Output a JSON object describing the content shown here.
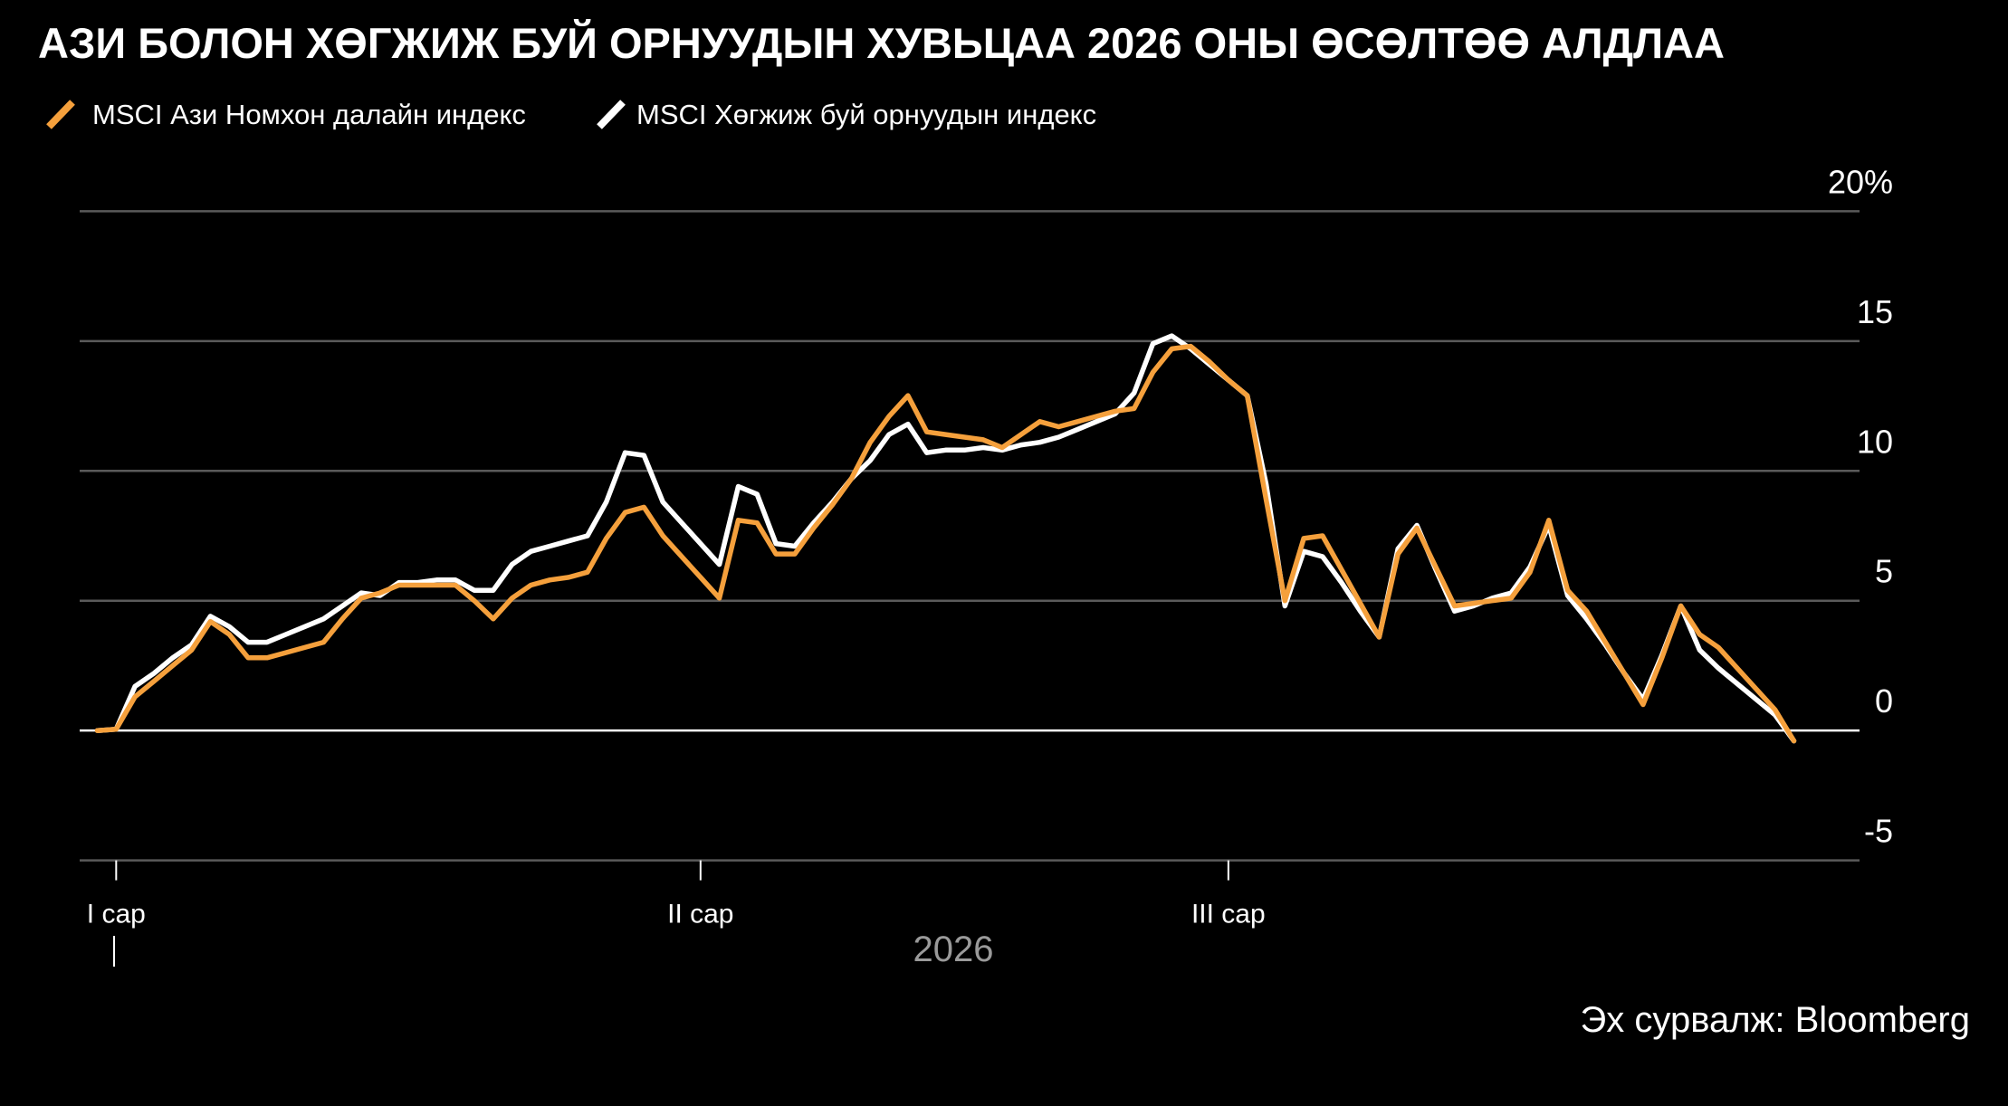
{
  "chart_data": {
    "type": "line",
    "title": "АЗИ БОЛОН ХӨГЖИЖ БУЙ ОРНУУДЫН ХУВЬЦАА 2026 ОНЫ ӨСӨЛТӨӨ АЛДЛАА",
    "xlabel": "2026",
    "source": "Эх сурвалж: Bloomberg",
    "categories": [
      null,
      "I сар",
      null,
      null,
      null,
      null,
      null,
      null,
      null,
      null,
      null,
      null,
      null,
      null,
      null,
      null,
      null,
      null,
      null,
      null,
      null,
      null,
      null,
      null,
      null,
      null,
      null,
      null,
      null,
      null,
      null,
      null,
      "II сар",
      null,
      null,
      null,
      null,
      null,
      null,
      null,
      null,
      null,
      null,
      null,
      null,
      null,
      null,
      null,
      null,
      null,
      null,
      null,
      null,
      null,
      null,
      null,
      null,
      null,
      null,
      null,
      "III сар",
      null,
      null,
      null,
      null,
      null,
      null,
      null,
      null,
      null,
      null,
      null,
      null,
      null,
      null,
      null,
      null,
      null,
      null,
      null,
      null,
      null,
      null,
      null,
      null,
      null,
      null,
      null,
      null,
      null,
      null
    ],
    "series": [
      {
        "name": "MSCI Ази Номхон далайн индекс",
        "color": "#f5a03c",
        "values": [
          0,
          0.05,
          1.3,
          1.9,
          2.5,
          3.1,
          4.2,
          3.7,
          2.8,
          2.8,
          3.0,
          3.2,
          3.4,
          4.3,
          5.1,
          5.3,
          5.6,
          5.6,
          5.6,
          5.6,
          5.0,
          4.3,
          5.1,
          5.6,
          5.8,
          5.9,
          6.1,
          7.4,
          8.4,
          8.6,
          7.5,
          6.7,
          5.9,
          5.1,
          8.1,
          8.0,
          6.8,
          6.8,
          7.8,
          8.7,
          9.7,
          11.1,
          12.1,
          12.9,
          11.5,
          11.4,
          11.3,
          11.2,
          10.9,
          11.4,
          11.9,
          11.7,
          11.9,
          12.1,
          12.3,
          12.4,
          13.8,
          14.7,
          14.8,
          14.2,
          13.5,
          12.9,
          8.9,
          5.0,
          7.4,
          7.5,
          6.2,
          4.9,
          3.6,
          6.8,
          7.8,
          6.3,
          4.8,
          4.9,
          5.0,
          5.1,
          6.1,
          8.1,
          5.4,
          4.6,
          3.4,
          2.2,
          1.0,
          2.8,
          4.8,
          3.7,
          3.2,
          2.4,
          1.6,
          0.8,
          -0.4
        ]
      },
      {
        "name": "MSCI Хөгжиж буй орнуудын индекс",
        "color": "#ffffff",
        "values": [
          0,
          0.05,
          1.7,
          2.2,
          2.8,
          3.3,
          4.4,
          4.0,
          3.4,
          3.4,
          3.7,
          4.0,
          4.3,
          4.8,
          5.3,
          5.2,
          5.7,
          5.7,
          5.8,
          5.8,
          5.4,
          5.4,
          6.4,
          6.9,
          7.1,
          7.3,
          7.5,
          8.8,
          10.7,
          10.6,
          8.8,
          8.0,
          7.2,
          6.4,
          9.4,
          9.1,
          7.2,
          7.1,
          8.0,
          8.8,
          9.7,
          10.4,
          11.4,
          11.8,
          10.7,
          10.8,
          10.8,
          10.9,
          10.8,
          11.0,
          11.1,
          11.3,
          11.6,
          11.9,
          12.2,
          13.0,
          14.9,
          15.2,
          14.7,
          14.1,
          13.5,
          12.9,
          9.5,
          4.8,
          6.9,
          6.7,
          5.7,
          4.6,
          3.6,
          7.0,
          7.9,
          6.2,
          4.6,
          4.8,
          5.1,
          5.3,
          6.3,
          7.9,
          5.2,
          4.3,
          3.3,
          2.2,
          1.2,
          2.9,
          4.8,
          3.1,
          2.4,
          1.8,
          1.2,
          0.6,
          -0.4
        ]
      }
    ],
    "ylim": [
      -5,
      20
    ],
    "yticks": [
      -5,
      0,
      5,
      10,
      15,
      {
        "value": 20,
        "label": "20%"
      }
    ],
    "grid": true
  }
}
